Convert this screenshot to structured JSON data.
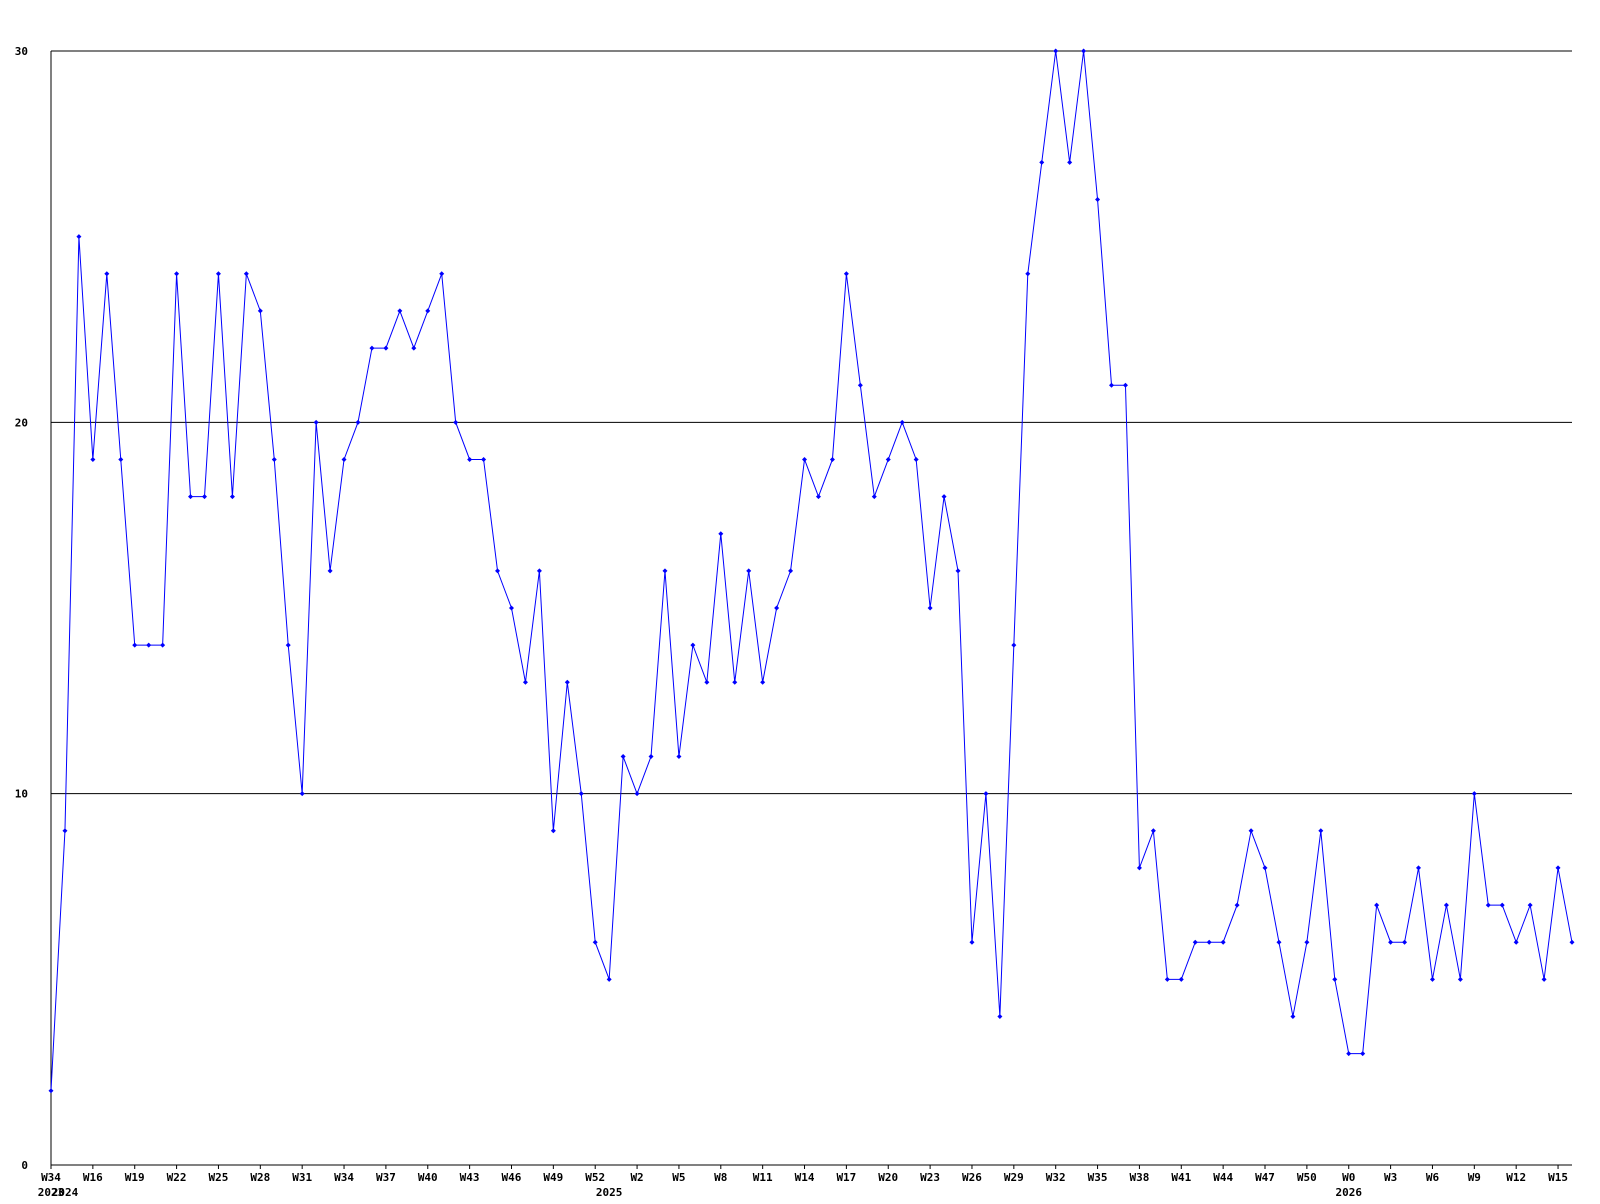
{
  "chart_data": {
    "type": "line",
    "categories": [
      "W34",
      null,
      null,
      "W16",
      null,
      null,
      "W19",
      null,
      null,
      "W22",
      null,
      null,
      "W25",
      null,
      null,
      "W28",
      null,
      null,
      "W31",
      null,
      null,
      "W34",
      null,
      null,
      "W37",
      null,
      null,
      "W40",
      null,
      null,
      "W43",
      null,
      null,
      "W46",
      null,
      null,
      "W49",
      null,
      null,
      "W52",
      null,
      null,
      "W2",
      null,
      null,
      "W5",
      null,
      null,
      "W8",
      null,
      null,
      "W11",
      null,
      null,
      "W14",
      null,
      null,
      "W17",
      null,
      null,
      "W20",
      null,
      null,
      "W23",
      null,
      null,
      "W26",
      null,
      null,
      "W29",
      null,
      null,
      "W32",
      null,
      null,
      "W35",
      null,
      null,
      "W38",
      null,
      null,
      "W41",
      null,
      null,
      "W44",
      null,
      null,
      "W47",
      null,
      null,
      "W50",
      null,
      null,
      "W0",
      null,
      null,
      "W3",
      null,
      null,
      "W6",
      null,
      null,
      "W9",
      null,
      null,
      "W12",
      null,
      null,
      "W15",
      null
    ],
    "category_years": [
      "2023",
      "2024",
      null,
      null,
      null,
      null,
      null,
      null,
      null,
      null,
      null,
      null,
      null,
      null,
      null,
      null,
      null,
      null,
      null,
      null,
      null,
      null,
      null,
      null,
      null,
      null,
      null,
      null,
      null,
      null,
      null,
      null,
      null,
      null,
      null,
      null,
      null,
      null,
      null,
      null,
      "2025",
      null,
      null,
      null,
      null,
      null,
      null,
      null,
      null,
      null,
      null,
      null,
      null,
      null,
      null,
      null,
      null,
      null,
      null,
      null,
      null,
      null,
      null,
      null,
      null,
      null,
      null,
      null,
      null,
      null,
      null,
      null,
      null,
      null,
      null,
      null,
      null,
      null,
      null,
      null,
      null,
      null,
      null,
      null,
      null,
      null,
      null,
      null,
      null,
      null,
      null,
      null,
      null,
      "2026",
      null,
      null,
      null,
      null,
      null,
      null,
      null,
      null,
      null,
      null,
      null,
      null,
      null,
      null,
      null,
      null
    ],
    "series": [
      {
        "color": "#0000ff",
        "values": [
          2,
          9,
          25,
          19,
          24,
          19,
          14,
          14,
          14,
          24,
          18,
          18,
          24,
          18,
          24,
          23,
          19,
          14,
          10,
          20,
          16,
          19,
          20,
          22,
          22,
          23,
          22,
          23,
          24,
          20,
          19,
          19,
          16,
          15,
          13,
          16,
          9,
          13,
          10,
          6,
          5,
          11,
          10,
          11,
          16,
          11,
          14,
          13,
          17,
          13,
          16,
          13,
          15,
          16,
          19,
          18,
          19,
          24,
          21,
          18,
          19,
          20,
          19,
          15,
          18,
          16,
          6,
          10,
          4,
          14,
          24,
          27,
          30,
          27,
          30,
          26,
          21,
          21,
          8,
          9,
          5,
          5,
          6,
          6,
          6,
          7,
          9,
          8,
          6,
          4,
          6,
          9,
          5,
          3,
          3,
          7,
          6,
          6,
          8,
          5,
          7,
          5,
          10,
          7,
          7,
          6,
          7,
          5,
          8,
          6
        ]
      }
    ],
    "ylim": [
      0,
      30
    ],
    "yticks": [
      0,
      10,
      20,
      30
    ],
    "grid": true
  }
}
